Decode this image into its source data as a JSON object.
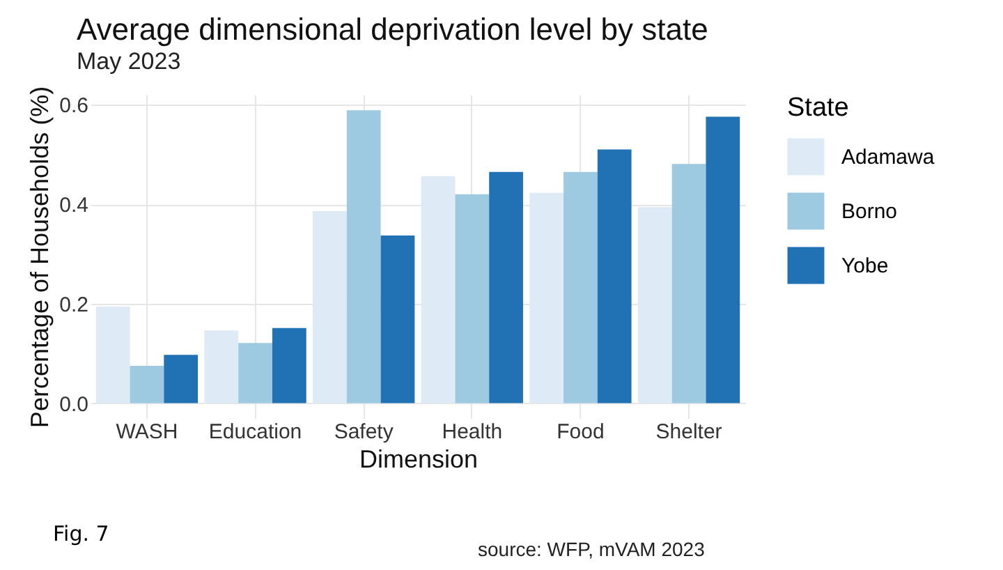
{
  "chart_data": {
    "type": "bar",
    "title": "Average dimensional deprivation level by state",
    "subtitle": "May 2023",
    "xlabel": "Dimension",
    "ylabel": "Percentage of Households (%)",
    "legend_title": "State",
    "categories": [
      "WASH",
      "Education",
      "Safety",
      "Health",
      "Food",
      "Shelter"
    ],
    "series": [
      {
        "name": "Adamawa",
        "color": "#deebf7",
        "values": [
          0.194,
          0.146,
          0.386,
          0.456,
          0.423,
          0.394
        ]
      },
      {
        "name": "Borno",
        "color": "#9ecae1",
        "values": [
          0.075,
          0.121,
          0.589,
          0.42,
          0.465,
          0.481
        ]
      },
      {
        "name": "Yobe",
        "color": "#2171b5",
        "values": [
          0.097,
          0.151,
          0.337,
          0.465,
          0.51,
          0.576
        ]
      }
    ],
    "ylim": [
      -0.03,
      0.62
    ],
    "yticks": [
      {
        "value": 0,
        "label": "0.0"
      },
      0.2,
      0.4,
      0.6
    ],
    "grid": true,
    "legend": "right",
    "annotations": [
      "Fig. 7",
      "source: WFP, mVAM 2023"
    ]
  }
}
